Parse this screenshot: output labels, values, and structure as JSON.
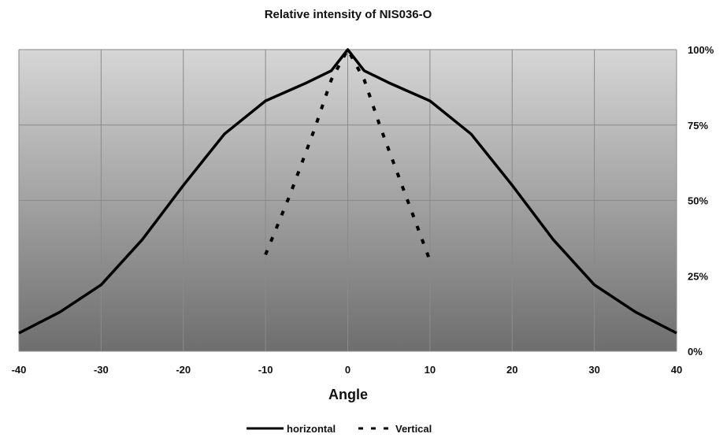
{
  "chart_data": {
    "type": "line",
    "title": "Relative intensity of NIS036-O",
    "xlabel": "Angle",
    "ylabel": "",
    "xlim": [
      -40,
      40
    ],
    "ylim": [
      0,
      100
    ],
    "x_ticks": [
      -40,
      -30,
      -20,
      -10,
      0,
      10,
      20,
      30,
      40
    ],
    "x_tick_labels": [
      "-40",
      "-30",
      "-20",
      "-10",
      "0",
      "10",
      "20",
      "30",
      "40"
    ],
    "y_ticks": [
      0,
      25,
      50,
      75,
      100
    ],
    "y_tick_labels": [
      "0%",
      "25%",
      "50%",
      "75%",
      "100%"
    ],
    "y_axis_side": "right",
    "grid": true,
    "legend_position": "bottom-center",
    "plot_background": "gradient light-to-dark gray",
    "series": [
      {
        "name": "horizontal",
        "style": "solid",
        "color": "#000000",
        "x": [
          -40,
          -35,
          -30,
          -25,
          -20,
          -15,
          -10,
          -5,
          -2,
          0,
          2,
          5,
          10,
          15,
          20,
          25,
          30,
          35,
          40
        ],
        "y": [
          6,
          13,
          22,
          37,
          55,
          72,
          83,
          89,
          93,
          100,
          93,
          89,
          83,
          72,
          55,
          37,
          22,
          13,
          6
        ]
      },
      {
        "name": "Vertical",
        "style": "dashed",
        "color": "#000000",
        "x": [
          -10,
          -7,
          -4,
          -2,
          0,
          2,
          4,
          7,
          10
        ],
        "y": [
          32,
          52,
          74,
          90,
          100,
          90,
          74,
          52,
          30
        ]
      }
    ]
  }
}
